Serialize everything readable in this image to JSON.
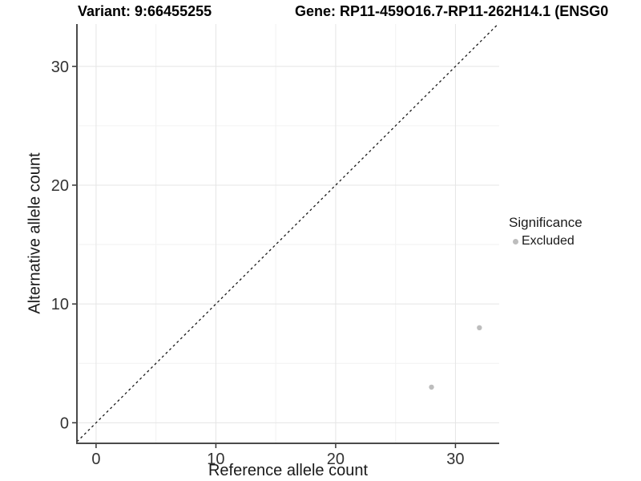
{
  "figure": {
    "title_left": "Variant: 9:66455255",
    "title_right": "Gene: RP11-459O16.7-RP11-262H14.1 (ENSG0"
  },
  "chart_data": {
    "type": "scatter",
    "xlabel": "Reference allele count",
    "ylabel": "Alternative allele count",
    "xlim": [
      -1.6,
      33.65
    ],
    "ylim": [
      -1.73,
      33.56
    ],
    "x_ticks": [
      0,
      10,
      20,
      30
    ],
    "y_ticks": [
      0,
      10,
      20,
      30
    ],
    "x_minor_ticks": [
      5,
      15,
      25
    ],
    "y_minor_ticks": [
      5,
      15,
      25
    ],
    "grid": "on",
    "identity_line": {
      "style": "dashed",
      "slope": 1,
      "intercept": 0
    },
    "series": [
      {
        "name": "Excluded",
        "color": "#bdbdbd",
        "points": [
          {
            "x": 28,
            "y": 3
          },
          {
            "x": 32,
            "y": 8
          }
        ]
      }
    ],
    "legend": {
      "title": "Significance",
      "position": "right",
      "items": [
        {
          "label": "Excluded",
          "color": "#bdbdbd"
        }
      ]
    },
    "colors": {
      "point": "#bdbdbd",
      "grid_major": "#e5e5e5",
      "grid_minor": "#f2f2f2",
      "axis_line": "#4a4a4a",
      "tick_mark": "#333333",
      "tick_text": "#333333",
      "axis_title_text": "#1a1a1a",
      "identity": "#1a1a1a",
      "background": "#ffffff"
    }
  }
}
